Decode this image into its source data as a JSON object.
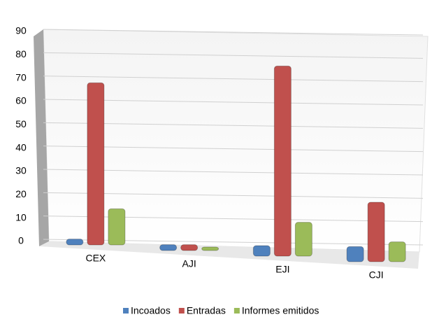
{
  "chart_data": {
    "type": "bar",
    "categories": [
      "CEX",
      "AJI",
      "EJI",
      "CJI"
    ],
    "series": [
      {
        "name": "Incoados",
        "color": "#4f81bd",
        "values": [
          1,
          1,
          3,
          5
        ]
      },
      {
        "name": "Entradas",
        "color": "#c0504d",
        "values": [
          68,
          1,
          80,
          24
        ]
      },
      {
        "name": "Informes emitidos",
        "color": "#9bbb59",
        "values": [
          14,
          0,
          13,
          7
        ]
      }
    ],
    "ylim": [
      0,
      90
    ],
    "yticks": [
      0,
      10,
      20,
      30,
      40,
      50,
      60,
      70,
      80,
      90
    ],
    "grid": true,
    "legend": "bottom"
  }
}
